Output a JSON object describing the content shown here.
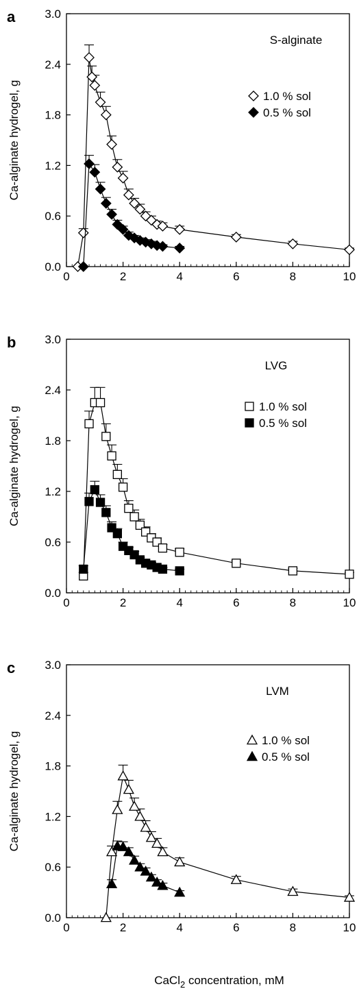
{
  "figure": {
    "xlabel_main": "CaCl",
    "xlabel_sub": "2",
    "xlabel_rest": " concentration, mM"
  },
  "chart_data": [
    {
      "type": "line",
      "panel": "a",
      "title": "S-alginate",
      "ylabel": "Ca-alginate hydrogel, g",
      "xlim": [
        0,
        10
      ],
      "ylim": [
        0,
        3
      ],
      "x_ticks": [
        "0",
        "2",
        "4",
        "6",
        "8",
        "10"
      ],
      "y_ticks": [
        "0.0",
        "0.6",
        "1.2",
        "1.8",
        "2.4",
        "3.0"
      ],
      "grid": false,
      "legend_position": "upper-right",
      "series": [
        {
          "name": "1.0 % sol",
          "marker": "diamond-open",
          "x": [
            0.4,
            0.6,
            0.8,
            0.9,
            1.0,
            1.2,
            1.4,
            1.6,
            1.8,
            2.0,
            2.2,
            2.4,
            2.6,
            2.8,
            3.0,
            3.2,
            3.4,
            4.0,
            6.0,
            8.0,
            10.0
          ],
          "y": [
            0.0,
            0.4,
            2.48,
            2.25,
            2.15,
            1.95,
            1.8,
            1.45,
            1.18,
            1.05,
            0.85,
            0.75,
            0.68,
            0.6,
            0.55,
            0.5,
            0.48,
            0.44,
            0.35,
            0.27,
            0.2
          ],
          "err": [
            0,
            0.05,
            0.15,
            0.13,
            0.12,
            0.12,
            0.1,
            0.1,
            0.09,
            0.08,
            0.07,
            0.06,
            0.06,
            0.05,
            0.05,
            0.04,
            0.04,
            0.04,
            0.03,
            0.03,
            0.02
          ]
        },
        {
          "name": "0.5 % sol",
          "marker": "diamond-filled",
          "x": [
            0.6,
            0.8,
            1.0,
            1.2,
            1.4,
            1.6,
            1.8,
            2.0,
            2.2,
            2.4,
            2.6,
            2.8,
            3.0,
            3.2,
            3.4,
            4.0
          ],
          "y": [
            0.0,
            1.22,
            1.12,
            0.92,
            0.75,
            0.62,
            0.5,
            0.44,
            0.37,
            0.34,
            0.31,
            0.29,
            0.27,
            0.25,
            0.24,
            0.22
          ],
          "err": [
            0,
            0.1,
            0.09,
            0.08,
            0.07,
            0.06,
            0.05,
            0.04,
            0.04,
            0.03,
            0.03,
            0.03,
            0.03,
            0.02,
            0.02,
            0.02
          ]
        }
      ]
    },
    {
      "type": "line",
      "panel": "b",
      "title": "LVG",
      "ylabel": "Ca-alginate hydrogel, g",
      "xlim": [
        0,
        10
      ],
      "ylim": [
        0,
        3
      ],
      "x_ticks": [
        "0",
        "2",
        "4",
        "6",
        "8",
        "10"
      ],
      "y_ticks": [
        "0.0",
        "0.6",
        "1.2",
        "1.8",
        "2.4",
        "3.0"
      ],
      "grid": false,
      "legend_position": "upper-right",
      "series": [
        {
          "name": "1.0 % sol",
          "marker": "square-open",
          "x": [
            0.6,
            0.8,
            1.0,
            1.2,
            1.4,
            1.6,
            1.8,
            2.0,
            2.2,
            2.4,
            2.6,
            2.8,
            3.0,
            3.2,
            3.4,
            4.0,
            6.0,
            8.0,
            10.0
          ],
          "y": [
            0.2,
            2.0,
            2.25,
            2.25,
            1.85,
            1.62,
            1.4,
            1.25,
            1.0,
            0.9,
            0.8,
            0.72,
            0.65,
            0.6,
            0.53,
            0.48,
            0.35,
            0.26,
            0.22
          ],
          "err": [
            0.04,
            0.15,
            0.18,
            0.18,
            0.15,
            0.13,
            0.12,
            0.1,
            0.09,
            0.08,
            0.07,
            0.06,
            0.05,
            0.05,
            0.04,
            0.04,
            0.03,
            0.03,
            0.02
          ]
        },
        {
          "name": "0.5 % sol",
          "marker": "square-filled",
          "x": [
            0.6,
            0.8,
            1.0,
            1.2,
            1.4,
            1.6,
            1.8,
            2.0,
            2.2,
            2.4,
            2.6,
            2.8,
            3.0,
            3.2,
            3.4,
            4.0
          ],
          "y": [
            0.28,
            1.08,
            1.22,
            1.07,
            0.95,
            0.77,
            0.7,
            0.55,
            0.5,
            0.45,
            0.39,
            0.35,
            0.33,
            0.3,
            0.28,
            0.26
          ],
          "err": [
            0.04,
            0.1,
            0.1,
            0.09,
            0.08,
            0.07,
            0.06,
            0.05,
            0.04,
            0.04,
            0.03,
            0.03,
            0.03,
            0.03,
            0.02,
            0.02
          ]
        }
      ]
    },
    {
      "type": "line",
      "panel": "c",
      "title": "LVM",
      "ylabel": "Ca-alginate hydrogel, g",
      "xlim": [
        0,
        10
      ],
      "ylim": [
        0,
        3
      ],
      "x_ticks": [
        "0",
        "2",
        "4",
        "6",
        "8",
        "10"
      ],
      "y_ticks": [
        "0.0",
        "0.6",
        "1.2",
        "1.8",
        "2.4",
        "3.0"
      ],
      "grid": false,
      "legend_position": "upper-right",
      "series": [
        {
          "name": "1.0 % sol",
          "marker": "triangle-open",
          "x": [
            1.4,
            1.6,
            1.8,
            2.0,
            2.2,
            2.4,
            2.6,
            2.8,
            3.0,
            3.2,
            3.4,
            4.0,
            6.0,
            8.0,
            10.0
          ],
          "y": [
            0.0,
            0.78,
            1.28,
            1.68,
            1.52,
            1.32,
            1.2,
            1.07,
            0.95,
            0.88,
            0.78,
            0.66,
            0.45,
            0.31,
            0.24
          ],
          "err": [
            0,
            0.07,
            0.1,
            0.13,
            0.11,
            0.1,
            0.09,
            0.08,
            0.07,
            0.06,
            0.05,
            0.05,
            0.04,
            0.03,
            0.02
          ]
        },
        {
          "name": "0.5 % sol",
          "marker": "triangle-filled",
          "x": [
            1.6,
            1.8,
            2.0,
            2.2,
            2.4,
            2.6,
            2.8,
            3.0,
            3.2,
            3.4,
            4.0
          ],
          "y": [
            0.4,
            0.85,
            0.84,
            0.78,
            0.68,
            0.6,
            0.55,
            0.48,
            0.42,
            0.38,
            0.3
          ],
          "err": [
            0.05,
            0.06,
            0.06,
            0.05,
            0.05,
            0.04,
            0.04,
            0.03,
            0.03,
            0.03,
            0.02
          ]
        }
      ]
    }
  ]
}
